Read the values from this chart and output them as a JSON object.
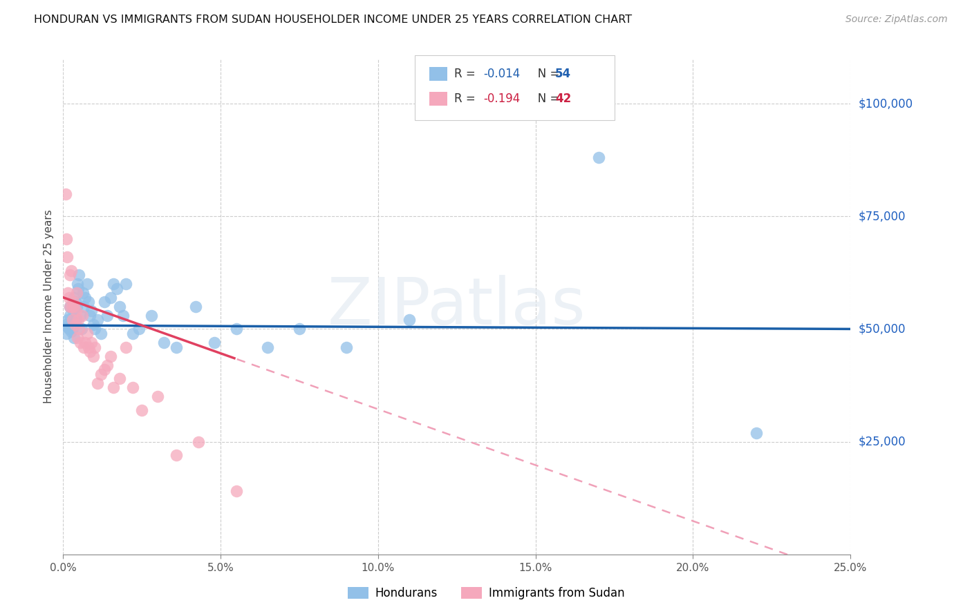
{
  "title": "HONDURAN VS IMMIGRANTS FROM SUDAN HOUSEHOLDER INCOME UNDER 25 YEARS CORRELATION CHART",
  "source": "Source: ZipAtlas.com",
  "ylabel": "Householder Income Under 25 years",
  "ytick_values": [
    25000,
    50000,
    75000,
    100000
  ],
  "ytick_labels": [
    "$25,000",
    "$50,000",
    "$75,000",
    "$100,000"
  ],
  "legend_blue_r": "-0.014",
  "legend_blue_n": "54",
  "legend_pink_r": "-0.194",
  "legend_pink_n": "42",
  "legend_blue_label": "Hondurans",
  "legend_pink_label": "Immigrants from Sudan",
  "blue_color": "#92c0e8",
  "pink_color": "#f5a8bc",
  "trend_blue_color": "#1a5fa8",
  "trend_pink_solid_color": "#e04060",
  "trend_pink_dash_color": "#f0a0b8",
  "blue_x": [
    0.0008,
    0.001,
    0.0012,
    0.0015,
    0.0018,
    0.002,
    0.0022,
    0.0025,
    0.0028,
    0.003,
    0.0032,
    0.0034,
    0.0035,
    0.0038,
    0.004,
    0.0042,
    0.0045,
    0.0048,
    0.005,
    0.0055,
    0.0058,
    0.0062,
    0.0065,
    0.007,
    0.0075,
    0.008,
    0.0085,
    0.009,
    0.0095,
    0.01,
    0.011,
    0.012,
    0.013,
    0.014,
    0.015,
    0.016,
    0.017,
    0.018,
    0.019,
    0.02,
    0.022,
    0.024,
    0.028,
    0.032,
    0.036,
    0.042,
    0.048,
    0.055,
    0.065,
    0.075,
    0.09,
    0.11,
    0.17,
    0.22
  ],
  "blue_y": [
    51000,
    49000,
    50500,
    52000,
    50000,
    53000,
    55000,
    49500,
    51000,
    50000,
    54000,
    48000,
    57000,
    56000,
    52000,
    55000,
    60000,
    59000,
    62000,
    53000,
    50000,
    58000,
    55000,
    57000,
    60000,
    56000,
    53000,
    54000,
    51000,
    50000,
    52000,
    49000,
    56000,
    53000,
    57000,
    60000,
    59000,
    55000,
    53000,
    60000,
    49000,
    50000,
    53000,
    47000,
    46000,
    55000,
    47000,
    50000,
    46000,
    50000,
    46000,
    52000,
    88000,
    27000
  ],
  "pink_x": [
    0.0008,
    0.001,
    0.0012,
    0.0015,
    0.0018,
    0.002,
    0.0022,
    0.0025,
    0.0028,
    0.003,
    0.0032,
    0.0035,
    0.0038,
    0.004,
    0.0042,
    0.0045,
    0.0048,
    0.005,
    0.0055,
    0.006,
    0.0065,
    0.007,
    0.0075,
    0.008,
    0.0085,
    0.009,
    0.0095,
    0.01,
    0.011,
    0.012,
    0.013,
    0.014,
    0.015,
    0.016,
    0.018,
    0.02,
    0.022,
    0.025,
    0.03,
    0.036,
    0.043,
    0.055
  ],
  "pink_y": [
    80000,
    70000,
    66000,
    58000,
    57000,
    55000,
    62000,
    63000,
    55000,
    52000,
    56000,
    55000,
    51000,
    54000,
    58000,
    48000,
    52000,
    50000,
    47000,
    53000,
    46000,
    47000,
    49000,
    46000,
    45000,
    47000,
    44000,
    46000,
    38000,
    40000,
    41000,
    42000,
    44000,
    37000,
    39000,
    46000,
    37000,
    32000,
    35000,
    22000,
    25000,
    14000
  ],
  "xmin": 0.0,
  "xmax": 0.25,
  "ymin": 0,
  "ymax": 110000,
  "x_ticks": [
    0.0,
    0.05,
    0.1,
    0.15,
    0.2,
    0.25
  ],
  "x_tick_labels": [
    "0.0%",
    "5.0%",
    "10.0%",
    "15.0%",
    "20.0%",
    "25.0%"
  ],
  "background_color": "#ffffff",
  "grid_color": "#cccccc"
}
